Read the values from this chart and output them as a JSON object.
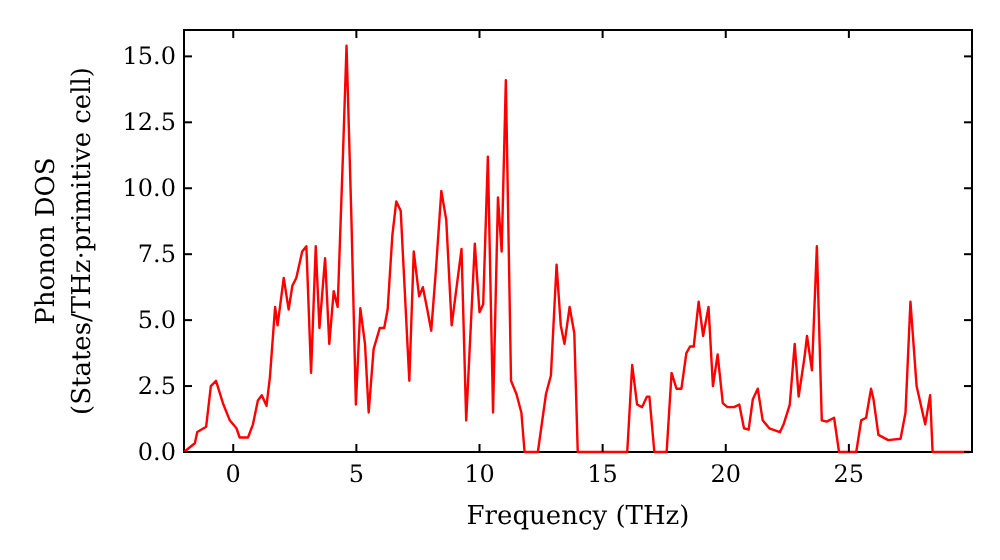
{
  "chart_data": {
    "type": "line",
    "xlabel": "Frequency (THz)",
    "ylabel": "Phonon DOS\n(States/THz·primitive cell)",
    "xlim": [
      -2,
      30
    ],
    "ylim": [
      0,
      16
    ],
    "xticks": [
      0,
      5,
      10,
      15,
      20,
      25
    ],
    "yticks": [
      {
        "value": 0,
        "label": "0.0"
      },
      {
        "value": 2.5,
        "label": "2.5"
      },
      {
        "value": 5,
        "label": "5.0"
      },
      {
        "value": 7.5,
        "label": "7.5"
      },
      {
        "value": 10,
        "label": "10.0"
      },
      {
        "value": 12.5,
        "label": "12.5"
      },
      {
        "value": 15,
        "label": "15.0"
      }
    ],
    "grid": false,
    "marker": "none",
    "line_style": "solid",
    "series": [
      {
        "color": "#ff0000",
        "x": [
          -2,
          -1.56,
          -1.46,
          -1.1,
          -0.91,
          -0.7,
          -0.4,
          -0.14,
          0.13,
          0.26,
          0.6,
          0.8,
          1.0,
          1.16,
          1.35,
          1.49,
          1.7,
          1.8,
          2.05,
          2.25,
          2.4,
          2.56,
          2.8,
          2.97,
          3.16,
          3.35,
          3.5,
          3.73,
          3.9,
          4.08,
          4.24,
          4.46,
          4.6,
          4.8,
          4.98,
          5.16,
          5.35,
          5.5,
          5.7,
          5.95,
          6.13,
          6.27,
          6.46,
          6.62,
          6.8,
          7.15,
          7.33,
          7.55,
          7.7,
          7.88,
          8.04,
          8.23,
          8.45,
          8.65,
          8.87,
          9.27,
          9.46,
          9.81,
          10.0,
          10.15,
          10.34,
          10.55,
          10.75,
          10.9,
          11.07,
          11.28,
          11.5,
          11.7,
          11.83,
          12.37,
          12.7,
          12.9,
          13.13,
          13.3,
          13.45,
          13.66,
          13.85,
          13.99,
          16.0,
          16.2,
          16.4,
          16.6,
          16.8,
          16.9,
          17.1,
          17.6,
          17.8,
          18.0,
          18.2,
          18.4,
          18.55,
          18.7,
          18.9,
          19.08,
          19.3,
          19.48,
          19.67,
          19.88,
          20.07,
          20.34,
          20.55,
          20.74,
          20.93,
          21.1,
          21.3,
          21.5,
          21.77,
          22.2,
          22.35,
          22.6,
          22.8,
          22.96,
          23.2,
          23.3,
          23.5,
          23.7,
          23.9,
          24.1,
          24.4,
          24.6,
          25.3,
          25.5,
          25.7,
          25.9,
          26.0,
          26.2,
          26.6,
          27.1,
          27.3,
          27.5,
          27.75,
          28.1,
          28.3,
          28.4,
          29.9
        ],
        "values": [
          0,
          0.33,
          0.76,
          0.96,
          2.5,
          2.7,
          1.8,
          1.2,
          0.9,
          0.55,
          0.55,
          1.05,
          1.95,
          2.15,
          1.75,
          2.85,
          5.5,
          4.8,
          6.6,
          5.4,
          6.3,
          6.6,
          7.6,
          7.8,
          3.0,
          7.8,
          4.7,
          7.35,
          4.1,
          6.1,
          5.5,
          11.4,
          15.4,
          8.8,
          1.8,
          5.45,
          4.1,
          1.5,
          3.9,
          4.7,
          4.7,
          5.4,
          8.2,
          9.5,
          9.15,
          2.7,
          7.6,
          5.9,
          6.25,
          5.4,
          4.6,
          6.9,
          9.9,
          8.8,
          4.8,
          7.7,
          1.2,
          7.9,
          5.3,
          5.6,
          11.2,
          1.5,
          9.65,
          7.6,
          14.1,
          2.7,
          2.2,
          1.5,
          0,
          0,
          2.2,
          2.9,
          7.1,
          4.8,
          4.1,
          5.5,
          4.5,
          0,
          0,
          3.3,
          1.8,
          1.7,
          2.1,
          2.1,
          0,
          0,
          3.0,
          2.4,
          2.4,
          3.75,
          4.0,
          4.0,
          5.7,
          4.4,
          5.5,
          2.5,
          3.7,
          1.85,
          1.7,
          1.7,
          1.8,
          0.9,
          0.85,
          2.0,
          2.4,
          1.2,
          0.9,
          0.75,
          1.05,
          1.8,
          4.1,
          2.1,
          3.6,
          4.4,
          3.1,
          7.8,
          1.2,
          1.15,
          1.3,
          0,
          0,
          1.2,
          1.3,
          2.4,
          2.0,
          0.65,
          0.45,
          0.5,
          1.5,
          5.7,
          2.5,
          1.05,
          2.15,
          0,
          0
        ]
      }
    ]
  }
}
